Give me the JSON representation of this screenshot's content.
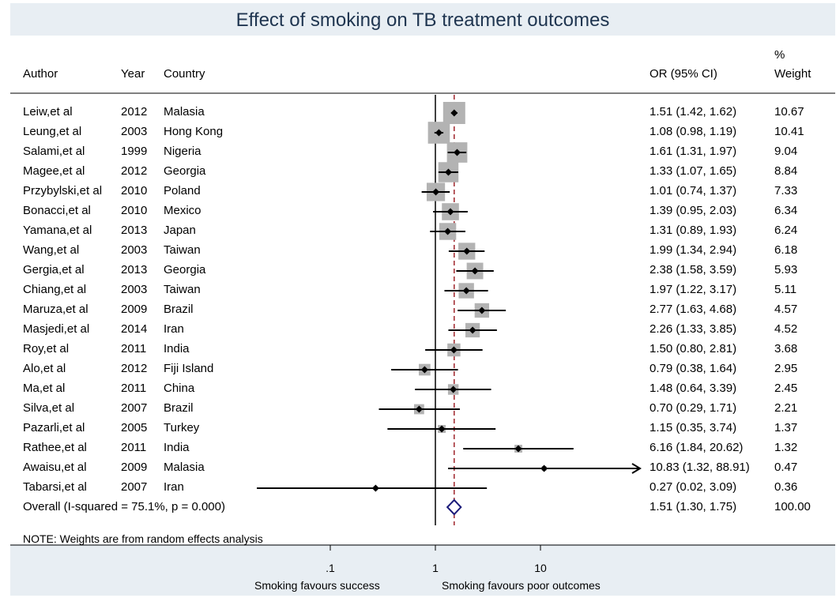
{
  "chart_data": {
    "type": "forest",
    "title": "Effect of smoking on TB treatment outcomes",
    "columns": {
      "author": "Author",
      "year": "Year",
      "country": "Country",
      "or": "OR (95% CI)",
      "weight_line1": "%",
      "weight_line2": "Weight"
    },
    "xscale": "log",
    "xlim": [
      0.02,
      88.91
    ],
    "xticks": [
      {
        "value": 0.1,
        "label": ".1"
      },
      {
        "value": 1,
        "label": "1"
      },
      {
        "value": 10,
        "label": "10"
      }
    ],
    "null_line": 1,
    "pooled_line": 1.51,
    "studies": [
      {
        "author": "Leiw,et al",
        "year": "2012",
        "country": "Malasia",
        "or": 1.51,
        "lo": 1.42,
        "hi": 1.62,
        "or_text": "1.51 (1.42, 1.62)",
        "weight": 10.67,
        "weight_text": "10.67"
      },
      {
        "author": "Leung,et al",
        "year": "2003",
        "country": "Hong Kong",
        "or": 1.08,
        "lo": 0.98,
        "hi": 1.19,
        "or_text": "1.08 (0.98, 1.19)",
        "weight": 10.41,
        "weight_text": "10.41"
      },
      {
        "author": "Salami,et al",
        "year": "1999",
        "country": "Nigeria",
        "or": 1.61,
        "lo": 1.31,
        "hi": 1.97,
        "or_text": "1.61 (1.31, 1.97)",
        "weight": 9.04,
        "weight_text": "9.04"
      },
      {
        "author": "Magee,et al",
        "year": "2012",
        "country": "Georgia",
        "or": 1.33,
        "lo": 1.07,
        "hi": 1.65,
        "or_text": "1.33 (1.07, 1.65)",
        "weight": 8.84,
        "weight_text": "8.84"
      },
      {
        "author": "Przybylski,et al",
        "year": "2010",
        "country": "Poland",
        "or": 1.01,
        "lo": 0.74,
        "hi": 1.37,
        "or_text": "1.01 (0.74, 1.37)",
        "weight": 7.33,
        "weight_text": "7.33"
      },
      {
        "author": "Bonacci,et al",
        "year": "2010",
        "country": "Mexico",
        "or": 1.39,
        "lo": 0.95,
        "hi": 2.03,
        "or_text": "1.39 (0.95, 2.03)",
        "weight": 6.34,
        "weight_text": "6.34"
      },
      {
        "author": "Yamana,et al",
        "year": "2013",
        "country": "Japan",
        "or": 1.31,
        "lo": 0.89,
        "hi": 1.93,
        "or_text": "1.31 (0.89, 1.93)",
        "weight": 6.24,
        "weight_text": "6.24"
      },
      {
        "author": "Wang,et al",
        "year": "2003",
        "country": "Taiwan",
        "or": 1.99,
        "lo": 1.34,
        "hi": 2.94,
        "or_text": "1.99 (1.34, 2.94)",
        "weight": 6.18,
        "weight_text": "6.18"
      },
      {
        "author": "Gergia,et al",
        "year": "2013",
        "country": "Georgia",
        "or": 2.38,
        "lo": 1.58,
        "hi": 3.59,
        "or_text": "2.38 (1.58, 3.59)",
        "weight": 5.93,
        "weight_text": "5.93"
      },
      {
        "author": "Chiang,et al",
        "year": "2003",
        "country": "Taiwan",
        "or": 1.97,
        "lo": 1.22,
        "hi": 3.17,
        "or_text": "1.97 (1.22, 3.17)",
        "weight": 5.11,
        "weight_text": "5.11"
      },
      {
        "author": "Maruza,et al",
        "year": "2009",
        "country": "Brazil",
        "or": 2.77,
        "lo": 1.63,
        "hi": 4.68,
        "or_text": "2.77 (1.63, 4.68)",
        "weight": 4.57,
        "weight_text": "4.57"
      },
      {
        "author": "Masjedi,et al",
        "year": "2014",
        "country": "Iran",
        "or": 2.26,
        "lo": 1.33,
        "hi": 3.85,
        "or_text": "2.26 (1.33, 3.85)",
        "weight": 4.52,
        "weight_text": "4.52"
      },
      {
        "author": "Roy,et al",
        "year": "2011",
        "country": "India",
        "or": 1.5,
        "lo": 0.8,
        "hi": 2.81,
        "or_text": "1.50 (0.80, 2.81)",
        "weight": 3.68,
        "weight_text": "3.68"
      },
      {
        "author": "Alo,et al",
        "year": "2012",
        "country": "Fiji Island",
        "or": 0.79,
        "lo": 0.38,
        "hi": 1.64,
        "or_text": "0.79 (0.38, 1.64)",
        "weight": 2.95,
        "weight_text": "2.95"
      },
      {
        "author": "Ma,et al",
        "year": "2011",
        "country": "China",
        "or": 1.48,
        "lo": 0.64,
        "hi": 3.39,
        "or_text": "1.48 (0.64, 3.39)",
        "weight": 2.45,
        "weight_text": "2.45"
      },
      {
        "author": "Silva,et al",
        "year": "2007",
        "country": "Brazil",
        "or": 0.7,
        "lo": 0.29,
        "hi": 1.71,
        "or_text": "0.70 (0.29, 1.71)",
        "weight": 2.21,
        "weight_text": "2.21"
      },
      {
        "author": "Pazarli,et al",
        "year": "2005",
        "country": "Turkey",
        "or": 1.15,
        "lo": 0.35,
        "hi": 3.74,
        "or_text": "1.15 (0.35, 3.74)",
        "weight": 1.37,
        "weight_text": "1.37"
      },
      {
        "author": "Rathee,et al",
        "year": "2011",
        "country": "India",
        "or": 6.16,
        "lo": 1.84,
        "hi": 20.62,
        "or_text": "6.16 (1.84, 20.62)",
        "weight": 1.32,
        "weight_text": "1.32"
      },
      {
        "author": "Awaisu,et al",
        "year": "2009",
        "country": "Malasia",
        "or": 10.83,
        "lo": 1.32,
        "hi": 88.91,
        "or_text": "10.83 (1.32, 88.91)",
        "weight": 0.47,
        "weight_text": "0.47"
      },
      {
        "author": "Tabarsi,et al",
        "year": "2007",
        "country": "Iran",
        "or": 0.27,
        "lo": 0.02,
        "hi": 3.09,
        "or_text": "0.27 (0.02, 3.09)",
        "weight": 0.36,
        "weight_text": "0.36"
      }
    ],
    "overall": {
      "label": "Overall  (I-squared = 75.1%, p = 0.000)",
      "or": 1.51,
      "lo": 1.3,
      "hi": 1.75,
      "or_text": "1.51 (1.30, 1.75)",
      "weight_text": "100.00"
    },
    "note": "NOTE: Weights are from random effects analysis",
    "xlabel_left": "Smoking favours success",
    "xlabel_right": "Smoking favours poor outcomes",
    "colors": {
      "box": "#b3b3b3",
      "diamond": "#1c1c7a",
      "pooled_line": "#a0252b",
      "frame": "#e8eef3",
      "title": "#1f3550"
    }
  }
}
